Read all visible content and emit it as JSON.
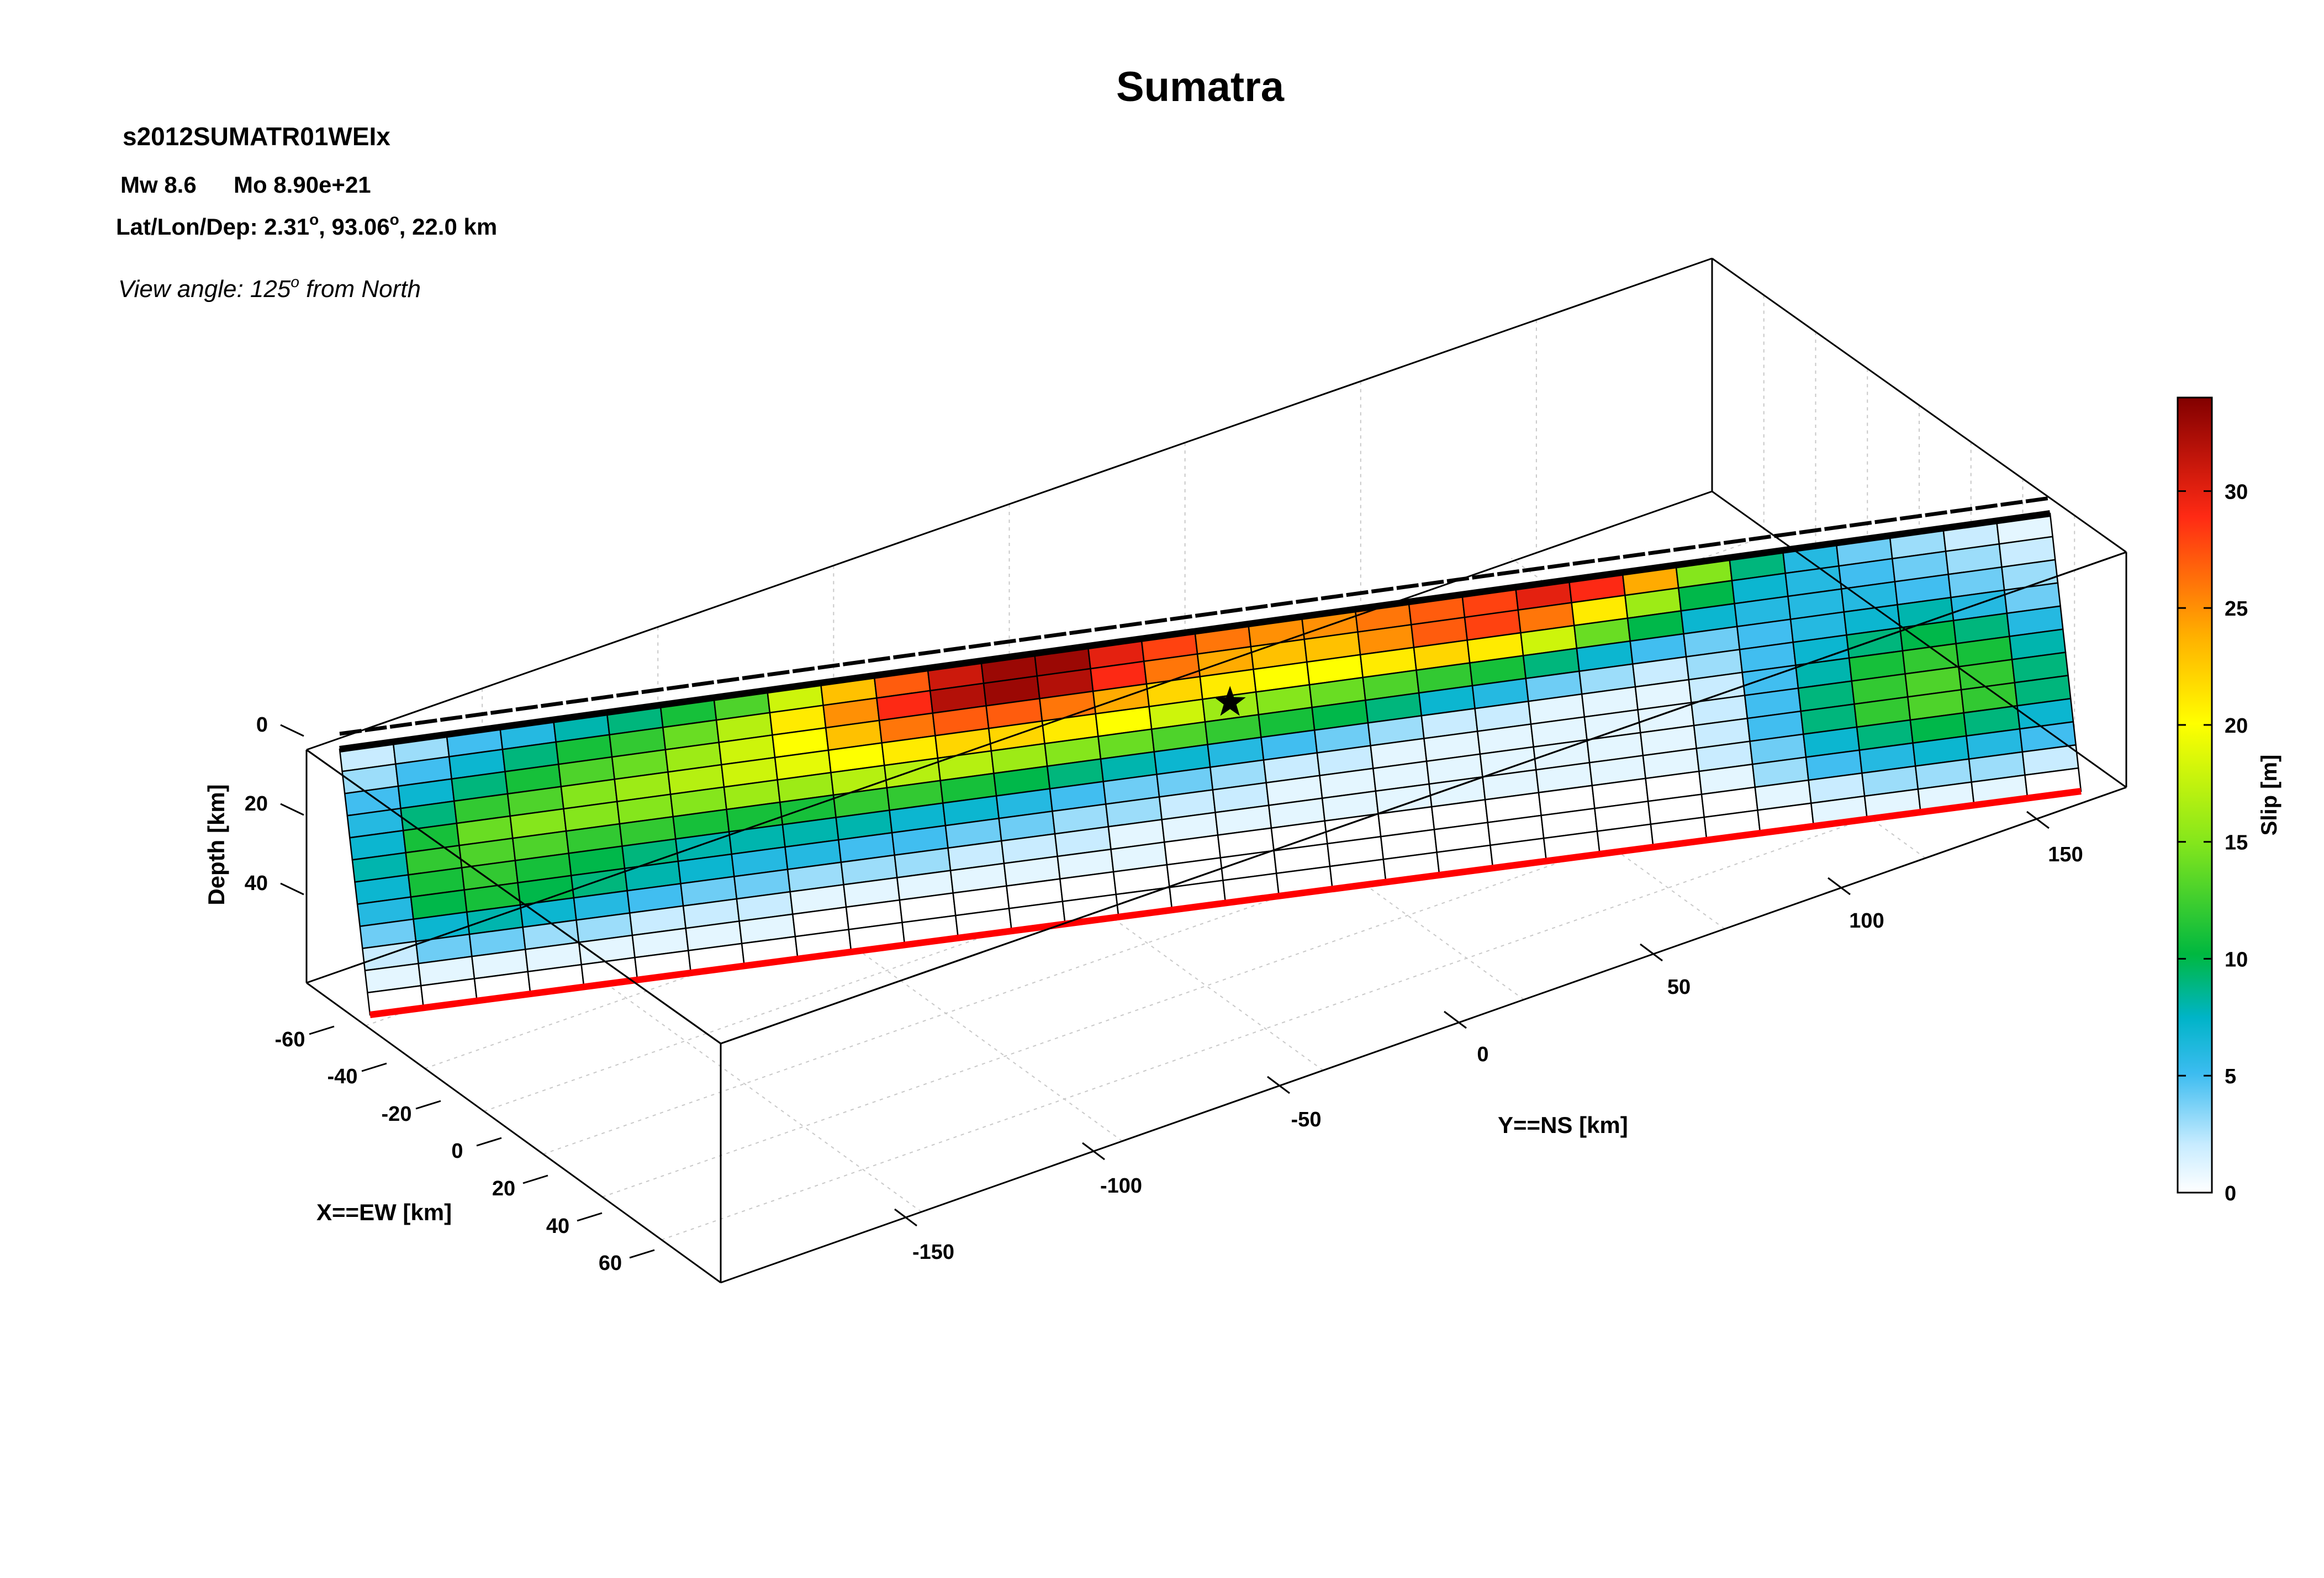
{
  "title": "Sumatra",
  "header": {
    "event_id": "s2012SUMATR01WEIx",
    "magnitude_label": "Mw 8.6",
    "moment_label": "Mo 8.90e+21",
    "location_prefix": "Lat/Lon/Dep: 2.31",
    "location_deg": "o",
    "location_lon": ", 93.06",
    "location_rest": ", 22.0 km",
    "view_prefix": "View angle: 125",
    "view_deg": "o",
    "view_suffix": " from North"
  },
  "chart_data": {
    "type": "heatmap",
    "title": "Sumatra",
    "xlabel": "Y==NS [km]",
    "ylabel": "X==EW [km]",
    "zlabel": "Depth [km]",
    "colorbar_label": "Slip [m]",
    "colorbar_ticks": [
      "0",
      "5",
      "10",
      "15",
      "20",
      "25",
      "30"
    ],
    "colorbar_range": [
      0,
      34
    ],
    "y_ticks": [
      "-150",
      "-100",
      "-50",
      "0",
      "50",
      "100",
      "150"
    ],
    "x_ticks": [
      "-60",
      "-40",
      "-20",
      "0",
      "20",
      "40",
      "60"
    ],
    "depth_ticks": [
      "0",
      "20",
      "40"
    ],
    "grid": true,
    "legend_position": "right",
    "colors": {
      "top_edge": "#000000",
      "bottom_edge": "#ff0000",
      "colormap": [
        "#ffffff",
        "#c8ecff",
        "#3cbcf0",
        "#00b4c8",
        "#00b840",
        "#84e61c",
        "#ffff00",
        "#ffb000",
        "#ff2a14",
        "#820000"
      ]
    },
    "fault_columns": 32,
    "fault_rows": 12,
    "slip_m": [
      [
        2,
        3,
        5,
        6,
        8,
        9,
        11,
        13,
        18,
        23,
        27,
        31,
        33,
        33,
        30,
        28,
        26,
        25,
        25,
        26,
        27,
        28,
        30,
        29,
        24,
        15,
        9,
        6,
        4,
        3,
        2,
        1
      ],
      [
        3,
        5,
        7,
        9,
        11,
        12,
        14,
        17,
        21,
        25,
        29,
        32,
        33,
        32,
        29,
        26,
        24,
        23,
        23,
        25,
        27,
        28,
        26,
        21,
        16,
        10,
        7,
        6,
        5,
        4,
        3,
        2
      ],
      [
        5,
        7,
        9,
        11,
        13,
        14,
        16,
        18,
        20,
        23,
        26,
        27,
        27,
        26,
        24,
        22,
        21,
        20,
        20,
        21,
        22,
        21,
        18,
        14,
        10,
        7,
        6,
        6,
        6,
        5,
        4,
        3
      ],
      [
        6,
        9,
        12,
        13,
        15,
        16,
        17,
        18,
        19,
        20,
        21,
        22,
        22,
        21,
        20,
        18,
        16,
        15,
        14,
        13,
        12,
        11,
        9,
        7,
        5,
        4,
        5,
        6,
        7,
        8,
        6,
        4
      ],
      [
        7,
        11,
        14,
        15,
        15,
        15,
        15,
        16,
        16,
        17,
        17,
        17,
        16,
        15,
        14,
        13,
        12,
        11,
        10,
        9,
        7,
        6,
        4,
        3,
        2,
        3,
        5,
        7,
        9,
        10,
        9,
        6
      ],
      [
        8,
        12,
        13,
        13,
        12,
        12,
        11,
        11,
        11,
        12,
        12,
        11,
        10,
        9,
        8,
        7,
        6,
        5,
        4,
        3,
        2,
        2,
        1,
        1,
        1,
        2,
        5,
        8,
        11,
        12,
        11,
        8
      ],
      [
        7,
        11,
        12,
        11,
        10,
        9,
        8,
        8,
        8,
        8,
        7,
        7,
        6,
        5,
        4,
        4,
        3,
        2,
        2,
        1,
        1,
        1,
        1,
        1,
        1,
        2,
        5,
        9,
        12,
        13,
        12,
        9
      ],
      [
        6,
        10,
        11,
        10,
        9,
        8,
        7,
        6,
        6,
        5,
        5,
        4,
        4,
        3,
        3,
        2,
        2,
        1,
        1,
        1,
        1,
        1,
        1,
        1,
        1,
        2,
        5,
        9,
        12,
        13,
        12,
        9
      ],
      [
        4,
        7,
        8,
        7,
        6,
        5,
        4,
        4,
        3,
        3,
        3,
        2,
        2,
        2,
        1,
        1,
        1,
        1,
        1,
        1,
        1,
        1,
        1,
        1,
        1,
        2,
        4,
        7,
        9,
        10,
        9,
        7
      ],
      [
        2,
        4,
        4,
        3,
        3,
        2,
        2,
        2,
        1,
        1,
        1,
        1,
        1,
        1,
        1,
        0,
        0,
        0,
        0,
        0,
        0,
        0,
        0,
        0,
        0,
        1,
        3,
        5,
        6,
        7,
        6,
        5
      ],
      [
        1,
        1,
        1,
        1,
        1,
        1,
        1,
        1,
        0,
        0,
        0,
        0,
        0,
        0,
        0,
        0,
        0,
        0,
        0,
        0,
        0,
        0,
        0,
        0,
        0,
        0,
        1,
        2,
        3,
        3,
        3,
        2
      ],
      [
        0,
        0,
        0,
        0,
        0,
        0,
        0,
        0,
        0,
        0,
        0,
        0,
        0,
        0,
        0,
        0,
        0,
        0,
        0,
        0,
        0,
        0,
        0,
        0,
        0,
        0,
        0,
        1,
        1,
        1,
        1,
        0
      ]
    ],
    "hypocenter": {
      "col": 16.5,
      "row": 3.3
    }
  }
}
